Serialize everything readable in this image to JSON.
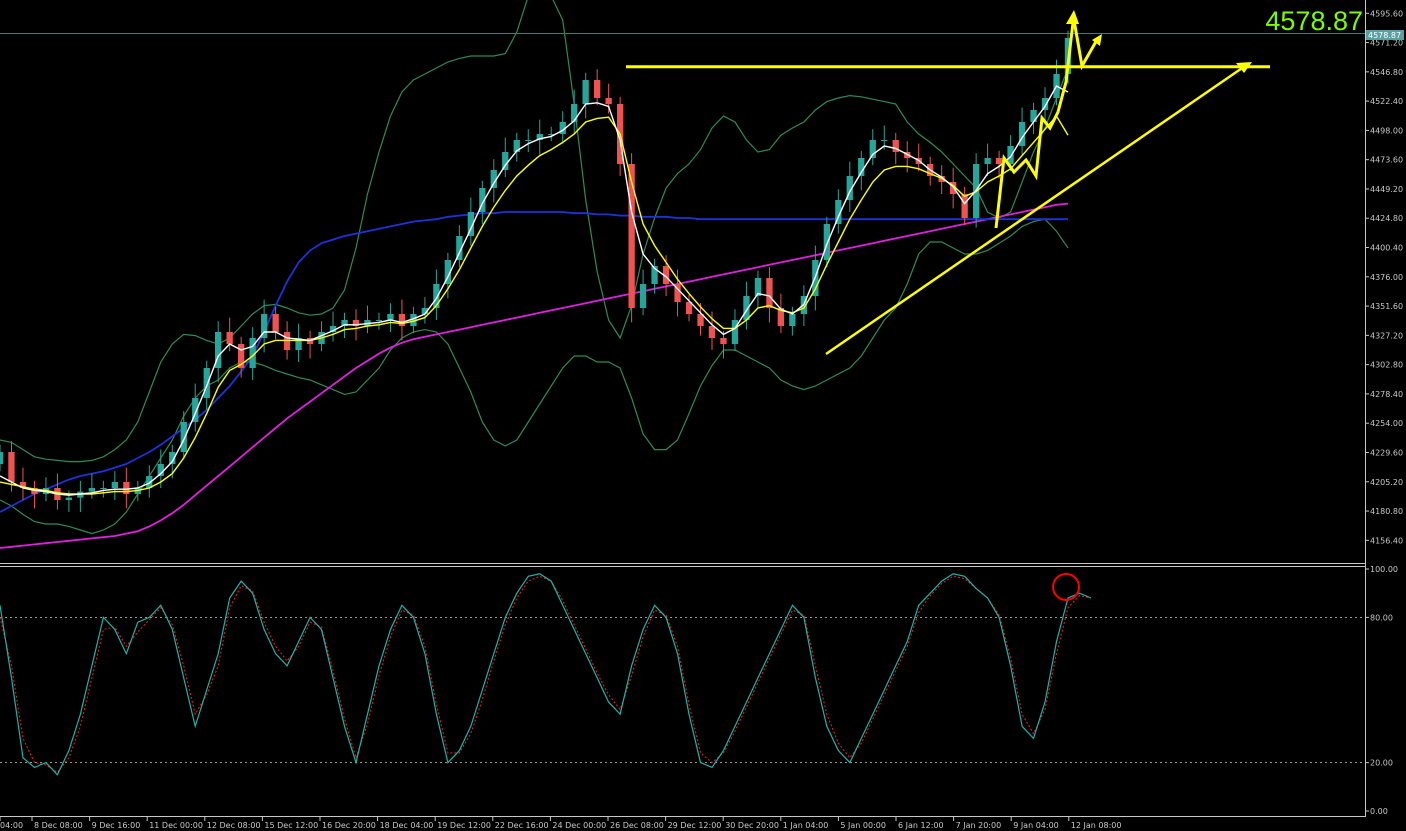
{
  "header": {
    "current_price": "4578.87",
    "price_tag": "4578.87"
  },
  "price_axis": {
    "ticks": [
      "4595.60",
      "4571.20",
      "4546.80",
      "4522.40",
      "4498.00",
      "4473.60",
      "4449.20",
      "4424.80",
      "4400.40",
      "4376.00",
      "4351.60",
      "4327.20",
      "4302.80",
      "4278.40",
      "4254.00",
      "4229.60",
      "4205.20",
      "4180.80",
      "4156.40"
    ]
  },
  "stoch_axis": {
    "ticks": [
      "100.00",
      "80.00",
      "20.00",
      "0.00"
    ]
  },
  "time_axis": {
    "labels": [
      "04:00",
      "8 Dec 08:00",
      "9 Dec 16:00",
      "11 Dec 00:00",
      "12 Dec 08:00",
      "15 Dec 12:00",
      "16 Dec 20:00",
      "18 Dec 04:00",
      "19 Dec 12:00",
      "22 Dec 16:00",
      "24 Dec 00:00",
      "26 Dec 08:00",
      "29 Dec 12:00",
      "30 Dec 20:00",
      "1 Jan 04:00",
      "5 Jan 00:00",
      "6 Jan 12:00",
      "7 Jan 20:00",
      "9 Jan 04:00",
      "12 Jan 08:00"
    ]
  },
  "colors": {
    "bull": "#26a69a",
    "bear": "#ef5350",
    "bb": "#2e8b57",
    "ma_fast": "#ffffff",
    "ma_mid": "#ffff00",
    "ma_blue": "#1e32dc",
    "ma_magenta": "#e020e0",
    "stoch_main": "#20b2aa",
    "stoch_signal": "#dc2020",
    "annotation": "#ffff00",
    "marker": "#ff0000",
    "price_big": "#7cfc00"
  },
  "chart_data": [
    {
      "type": "candlestick",
      "title": "",
      "ylim": [
        4140,
        4605
      ],
      "y_ticks": [
        4595.6,
        4571.2,
        4546.8,
        4522.4,
        4498.0,
        4473.6,
        4449.2,
        4424.8,
        4400.4,
        4376.0,
        4351.6,
        4327.2,
        4302.8,
        4278.4,
        4254.0,
        4229.6,
        4205.2,
        4180.8,
        4156.4
      ],
      "last_price": 4578.87,
      "resistance_level": 4551,
      "close": [
        4230,
        4205,
        4200,
        4195,
        4200,
        4190,
        4192,
        4197,
        4200,
        4200,
        4205,
        4195,
        4200,
        4210,
        4220,
        4230,
        4255,
        4275,
        4300,
        4330,
        4320,
        4300,
        4325,
        4345,
        4330,
        4315,
        4325,
        4320,
        4330,
        4335,
        4340,
        4335,
        4340,
        4340,
        4345,
        4335,
        4345,
        4350,
        4370,
        4390,
        4410,
        4430,
        4450,
        4465,
        4480,
        4490,
        4490,
        4495,
        4495,
        4505,
        4520,
        4540,
        4525,
        4520,
        4470,
        4350,
        4370,
        4385,
        4370,
        4355,
        4345,
        4335,
        4325,
        4320,
        4340,
        4360,
        4375,
        4350,
        4335,
        4345,
        4360,
        4390,
        4420,
        4440,
        4460,
        4475,
        4490,
        4490,
        4480,
        4475,
        4470,
        4460,
        4455,
        4445,
        4425,
        4470,
        4475,
        4470,
        4485,
        4505,
        4515,
        4525,
        4545,
        4575
      ],
      "ma_white": [
        4210,
        4205,
        4200,
        4198,
        4197,
        4195,
        4194,
        4195,
        4196,
        4198,
        4199,
        4199,
        4200,
        4204,
        4212,
        4222,
        4240,
        4262,
        4285,
        4310,
        4320,
        4315,
        4318,
        4330,
        4330,
        4325,
        4324,
        4323,
        4327,
        4331,
        4336,
        4336,
        4337,
        4338,
        4340,
        4338,
        4341,
        4345,
        4358,
        4376,
        4396,
        4416,
        4437,
        4454,
        4469,
        4481,
        4487,
        4491,
        4493,
        4498,
        4506,
        4520,
        4521,
        4518,
        4490,
        4430,
        4395,
        4383,
        4376,
        4366,
        4356,
        4346,
        4336,
        4328,
        4333,
        4348,
        4362,
        4360,
        4349,
        4345,
        4353,
        4376,
        4403,
        4426,
        4447,
        4463,
        4478,
        4485,
        4483,
        4478,
        4473,
        4465,
        4459,
        4451,
        4437,
        4448,
        4462,
        4468,
        4476,
        4492,
        4505,
        4518,
        4535,
        4530
      ],
      "ma_yellow": [
        4205,
        4203,
        4201,
        4199,
        4198,
        4196,
        4195,
        4195,
        4195,
        4196,
        4197,
        4197,
        4198,
        4200,
        4205,
        4212,
        4225,
        4242,
        4262,
        4284,
        4298,
        4303,
        4310,
        4320,
        4323,
        4323,
        4323,
        4323,
        4325,
        4328,
        4332,
        4333,
        4335,
        4336,
        4338,
        4337,
        4339,
        4342,
        4352,
        4366,
        4382,
        4400,
        4418,
        4434,
        4448,
        4460,
        4469,
        4477,
        4482,
        4488,
        4495,
        4505,
        4508,
        4509,
        4495,
        4455,
        4420,
        4402,
        4388,
        4374,
        4362,
        4351,
        4341,
        4333,
        4333,
        4340,
        4350,
        4352,
        4348,
        4346,
        4350,
        4366,
        4386,
        4405,
        4424,
        4440,
        4455,
        4465,
        4468,
        4468,
        4466,
        4462,
        4458,
        4452,
        4443,
        4447,
        4455,
        4460,
        4466,
        4477,
        4488,
        4499,
        4510,
        4494
      ],
      "ma_blue": [
        4180,
        4185,
        4190,
        4195,
        4199,
        4203,
        4207,
        4210,
        4212,
        4214,
        4217,
        4220,
        4225,
        4230,
        4236,
        4243,
        4250,
        4257,
        4265,
        4275,
        4285,
        4297,
        4310,
        4330,
        4352,
        4372,
        4388,
        4398,
        4404,
        4407,
        4410,
        4412,
        4414,
        4416,
        4418,
        4420,
        4422,
        4423,
        4424,
        4426,
        4427,
        4428,
        4429,
        4429,
        4430,
        4430,
        4430,
        4430,
        4430,
        4430,
        4429,
        4429,
        4428,
        4428,
        4427,
        4427,
        4426,
        4426,
        4426,
        4425,
        4425,
        4424,
        4424,
        4424,
        4424,
        4424,
        4424,
        4424,
        4424,
        4424,
        4424,
        4424,
        4424,
        4424,
        4424,
        4424,
        4424,
        4424,
        4424,
        4424,
        4424,
        4424,
        4424,
        4424,
        4424,
        4424,
        4424,
        4424,
        4424,
        4424,
        4424,
        4424,
        4424,
        4424
      ],
      "ma_magenta": [
        4150,
        4151,
        4152,
        4153,
        4154,
        4155,
        4156,
        4157,
        4158,
        4159,
        4160,
        4162,
        4164,
        4168,
        4173,
        4179,
        4186,
        4194,
        4202,
        4210,
        4218,
        4226,
        4234,
        4242,
        4250,
        4258,
        4265,
        4272,
        4279,
        4286,
        4293,
        4300,
        4306,
        4312,
        4317,
        4321,
        4324,
        4326,
        4328,
        4330,
        4332,
        4334,
        4336,
        4338,
        4340,
        4342,
        4344,
        4346,
        4348,
        4350,
        4352,
        4354,
        4356,
        4358,
        4360,
        4362,
        4364,
        4366,
        4368,
        4370,
        4372,
        4374,
        4376,
        4378,
        4380,
        4382,
        4384,
        4386,
        4388,
        4390,
        4392,
        4394,
        4396,
        4398,
        4400,
        4402,
        4404,
        4406,
        4408,
        4410,
        4412,
        4414,
        4416,
        4418,
        4420,
        4422,
        4424,
        4426,
        4428,
        4430,
        4432,
        4434,
        4436,
        4437
      ],
      "bb_upper": [
        4240,
        4238,
        4232,
        4226,
        4224,
        4223,
        4222,
        4222,
        4223,
        4226,
        4232,
        4240,
        4255,
        4280,
        4305,
        4320,
        4328,
        4327,
        4323,
        4320,
        4325,
        4335,
        4345,
        4352,
        4353,
        4350,
        4346,
        4344,
        4345,
        4350,
        4365,
        4400,
        4445,
        4480,
        4510,
        4530,
        4540,
        4545,
        4550,
        4555,
        4558,
        4560,
        4560,
        4560,
        4562,
        4580,
        4610,
        4615,
        4610,
        4590,
        4520,
        4440,
        4380,
        4340,
        4325,
        4352,
        4395,
        4425,
        4450,
        4462,
        4470,
        4482,
        4500,
        4510,
        4505,
        4490,
        4480,
        4482,
        4494,
        4500,
        4505,
        4515,
        4522,
        4525,
        4527,
        4526,
        4524,
        4522,
        4520,
        4505,
        4495,
        4488,
        4480,
        4470,
        4460,
        4450,
        4430,
        4425,
        4430,
        4455,
        4480,
        4500,
        4525,
        4550
      ],
      "bb_lower": [
        4190,
        4185,
        4178,
        4172,
        4170,
        4170,
        4168,
        4165,
        4162,
        4165,
        4170,
        4180,
        4195,
        4210,
        4225,
        4240,
        4260,
        4275,
        4285,
        4290,
        4300,
        4305,
        4305,
        4302,
        4298,
        4295,
        4292,
        4290,
        4286,
        4282,
        4278,
        4280,
        4290,
        4300,
        4315,
        4325,
        4330,
        4332,
        4330,
        4320,
        4300,
        4280,
        4255,
        4240,
        4235,
        4240,
        4255,
        4270,
        4285,
        4300,
        4310,
        4310,
        4305,
        4305,
        4300,
        4275,
        4245,
        4232,
        4232,
        4240,
        4262,
        4285,
        4302,
        4315,
        4315,
        4310,
        4305,
        4300,
        4290,
        4285,
        4282,
        4285,
        4290,
        4295,
        4300,
        4310,
        4325,
        4340,
        4350,
        4370,
        4395,
        4405,
        4405,
        4400,
        4395,
        4395,
        4398,
        4404,
        4410,
        4418,
        4422,
        4424,
        4414,
        4400
      ]
    },
    {
      "type": "line",
      "title": "",
      "ylim": [
        0,
        100
      ],
      "y_ticks": [
        100,
        80,
        20,
        0
      ],
      "levels": [
        80,
        20
      ],
      "series": [
        {
          "values": [
            85,
            55,
            22,
            18,
            20,
            15,
            25,
            40,
            60,
            80,
            75,
            65,
            78,
            80,
            85,
            75,
            55,
            35,
            50,
            65,
            88,
            95,
            90,
            75,
            65,
            60,
            70,
            80,
            75,
            55,
            35,
            20,
            40,
            60,
            75,
            85,
            80,
            65,
            40,
            20,
            25,
            35,
            50,
            65,
            80,
            90,
            97,
            98,
            95,
            85,
            75,
            65,
            55,
            45,
            40,
            60,
            75,
            85,
            80,
            65,
            40,
            20,
            18,
            25,
            35,
            45,
            55,
            65,
            75,
            85,
            80,
            55,
            35,
            25,
            20,
            30,
            40,
            50,
            60,
            70,
            85,
            90,
            95,
            98,
            97,
            92,
            88,
            80,
            60,
            35,
            30,
            45,
            70,
            88,
            90,
            88
          ]
        },
        {
          "values": [
            80,
            60,
            30,
            20,
            19,
            16,
            22,
            35,
            55,
            75,
            76,
            68,
            74,
            79,
            84,
            77,
            60,
            40,
            48,
            60,
            84,
            93,
            91,
            78,
            68,
            62,
            68,
            78,
            76,
            58,
            38,
            22,
            36,
            56,
            72,
            83,
            81,
            68,
            44,
            24,
            24,
            32,
            46,
            62,
            77,
            88,
            95,
            97,
            95,
            87,
            77,
            67,
            57,
            48,
            42,
            56,
            72,
            83,
            81,
            68,
            44,
            24,
            20,
            24,
            33,
            43,
            53,
            63,
            73,
            83,
            81,
            60,
            40,
            28,
            22,
            28,
            38,
            48,
            58,
            68,
            82,
            89,
            94,
            97,
            96,
            92,
            88,
            81,
            63,
            40,
            32,
            42,
            65,
            84,
            89,
            88
          ]
        }
      ]
    }
  ]
}
